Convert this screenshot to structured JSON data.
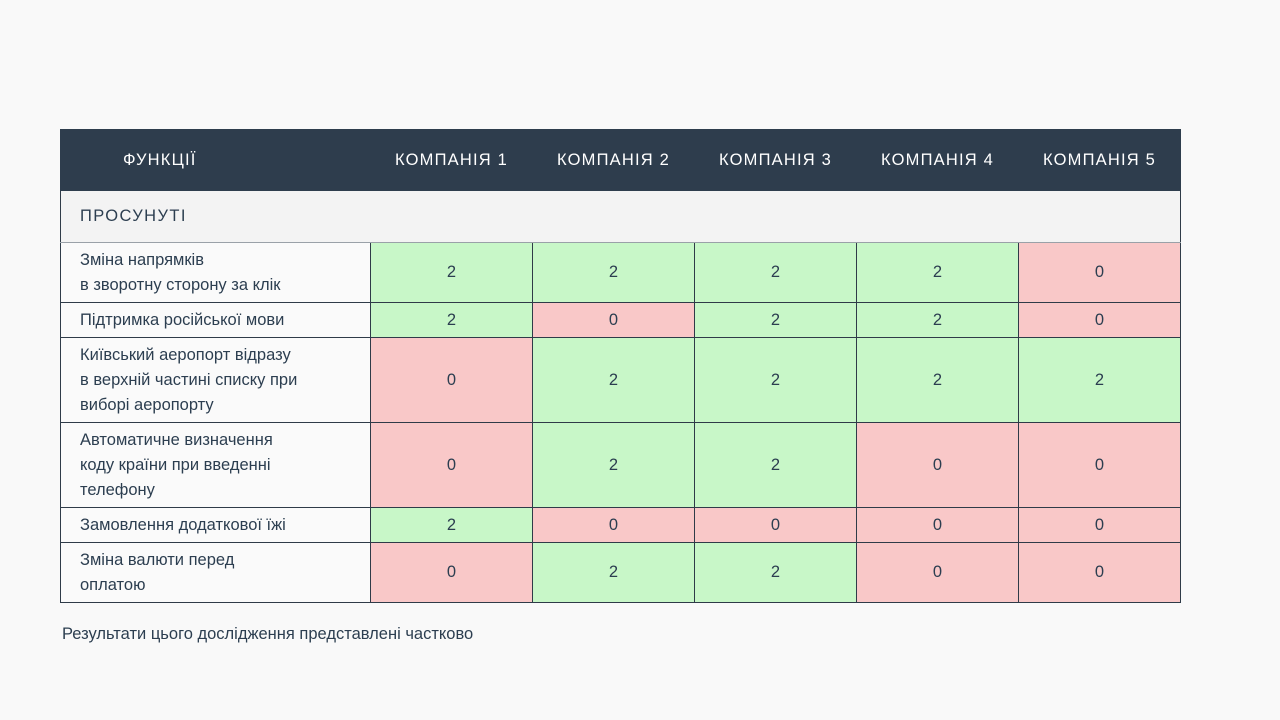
{
  "colors": {
    "header_bg": "#2e3d4d",
    "positive": "#c8f7c8",
    "negative": "#f9c8c8"
  },
  "table": {
    "headers": [
      "ФУНКЦІЇ",
      "КОМПАНІЯ 1",
      "КОМПАНІЯ 2",
      "КОМПАНІЯ 3",
      "КОМПАНІЯ 4",
      "КОМПАНІЯ 5"
    ],
    "section": "ПРОСУНУТІ",
    "rows": [
      {
        "feature_lines": [
          "Зміна напрямків",
          "в зворотну сторону за клік"
        ],
        "scores": [
          "2",
          "2",
          "2",
          "2",
          "0"
        ]
      },
      {
        "feature_lines": [
          "Підтримка російської мови"
        ],
        "scores": [
          "2",
          "0",
          "2",
          "2",
          "0"
        ]
      },
      {
        "feature_lines": [
          "Київський аеропорт відразу",
          "в верхній частині списку при",
          "виборі аеропорту"
        ],
        "scores": [
          "0",
          "2",
          "2",
          "2",
          "2"
        ]
      },
      {
        "feature_lines": [
          "Автоматичне визначення",
          "коду країни при введенні",
          "телефону"
        ],
        "scores": [
          "0",
          "2",
          "2",
          "0",
          "0"
        ]
      },
      {
        "feature_lines": [
          "Замовлення додаткової їжі"
        ],
        "scores": [
          "2",
          "0",
          "0",
          "0",
          "0"
        ]
      },
      {
        "feature_lines": [
          "Зміна валюти перед",
          "оплатою"
        ],
        "scores": [
          "0",
          "2",
          "2",
          "0",
          "0"
        ]
      }
    ]
  },
  "note": "Результати цього дослідження представлені частково"
}
